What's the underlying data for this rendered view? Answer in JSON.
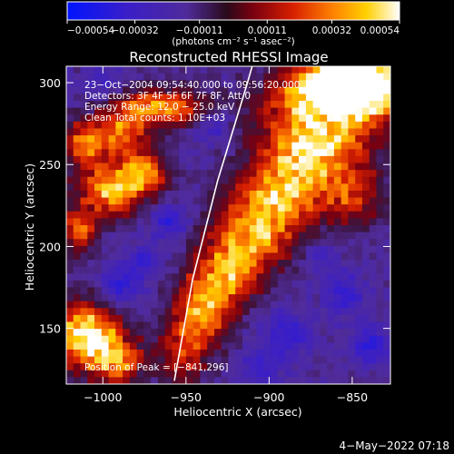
{
  "chart_data": {
    "type": "heatmap",
    "title": "Reconstructed RHESSI Image",
    "xlabel": "Heliocentric X (arcsec)",
    "ylabel": "Heliocentric Y (arcsec)",
    "xlim": [
      -1022,
      -827
    ],
    "ylim": [
      116,
      310
    ],
    "x_ticks": [
      -1000,
      -950,
      -900,
      -850
    ],
    "x_tick_labels": [
      "−1000",
      "−950",
      "−900",
      "−850"
    ],
    "y_ticks": [
      150,
      200,
      250,
      300
    ],
    "y_tick_labels": [
      "150",
      "200",
      "250",
      "300"
    ],
    "colorbar": {
      "min": -0.00054,
      "max": 0.00054,
      "ticks": [
        -0.00054,
        -0.00032,
        -0.00011,
        0.00011,
        0.00032,
        0.00054
      ],
      "tick_labels": [
        "−0.00054",
        "−0.00032",
        "−0.00011",
        "0.00011",
        "0.00032",
        "0.00054"
      ],
      "units": "(photons cm⁻² s⁻¹ asec⁻²)"
    },
    "annotations": [
      "23−Oct−2004 09:54:40.000 to 09:56:20.000",
      "Detectors: 3F 4F 5F 6F 7F 8F, Att 0",
      "Energy Range: 12.0 − 25.0 keV",
      "Clean     Total counts: 1.10E+03"
    ],
    "peak_label": "Position of Peak = [−841,296]",
    "peak_position": [
      -841,
      296
    ],
    "limb_arc": [
      [
        -957,
        118
      ],
      [
        -946,
        180
      ],
      [
        -931,
        240
      ],
      [
        -913,
        300
      ]
    ],
    "grid": false,
    "emission_blobs": [
      {
        "x": -860,
        "y": 290,
        "sx": 26,
        "sy": 14,
        "a": 1.35
      },
      {
        "x": -875,
        "y": 258,
        "sx": 22,
        "sy": 14,
        "a": 1.1
      },
      {
        "x": -893,
        "y": 230,
        "sx": 20,
        "sy": 12,
        "a": 1.0
      },
      {
        "x": -910,
        "y": 205,
        "sx": 18,
        "sy": 12,
        "a": 0.95
      },
      {
        "x": -925,
        "y": 182,
        "sx": 14,
        "sy": 12,
        "a": 0.85
      },
      {
        "x": -940,
        "y": 160,
        "sx": 12,
        "sy": 14,
        "a": 0.85
      },
      {
        "x": -952,
        "y": 135,
        "sx": 10,
        "sy": 14,
        "a": 0.6
      },
      {
        "x": -840,
        "y": 300,
        "sx": 12,
        "sy": 10,
        "a": 1.5
      },
      {
        "x": -848,
        "y": 230,
        "sx": 12,
        "sy": 12,
        "a": 0.55
      },
      {
        "x": -965,
        "y": 285,
        "sx": 20,
        "sy": 8,
        "a": 0.9
      },
      {
        "x": -990,
        "y": 268,
        "sx": 12,
        "sy": 9,
        "a": 0.8
      },
      {
        "x": -1012,
        "y": 262,
        "sx": 8,
        "sy": 10,
        "a": 0.75
      },
      {
        "x": -995,
        "y": 235,
        "sx": 13,
        "sy": 12,
        "a": 1.0
      },
      {
        "x": -975,
        "y": 245,
        "sx": 9,
        "sy": 9,
        "a": 0.85
      },
      {
        "x": -1015,
        "y": 210,
        "sx": 8,
        "sy": 10,
        "a": 0.7
      },
      {
        "x": -1010,
        "y": 145,
        "sx": 14,
        "sy": 14,
        "a": 1.3
      },
      {
        "x": -990,
        "y": 130,
        "sx": 10,
        "sy": 10,
        "a": 0.8
      },
      {
        "x": -870,
        "y": 300,
        "sx": 10,
        "sy": 7,
        "a": 0.8
      }
    ],
    "dark_spots": [
      {
        "x": -990,
        "y": 175,
        "s": 9,
        "a": 0.45
      },
      {
        "x": -960,
        "y": 215,
        "s": 8,
        "a": 0.4
      },
      {
        "x": -975,
        "y": 190,
        "s": 7,
        "a": 0.35
      },
      {
        "x": -890,
        "y": 145,
        "s": 10,
        "a": 0.4
      },
      {
        "x": -855,
        "y": 170,
        "s": 9,
        "a": 0.4
      },
      {
        "x": -840,
        "y": 140,
        "s": 8,
        "a": 0.45
      },
      {
        "x": -905,
        "y": 125,
        "s": 8,
        "a": 0.35
      },
      {
        "x": -1000,
        "y": 300,
        "s": 7,
        "a": 0.3
      },
      {
        "x": -935,
        "y": 275,
        "s": 8,
        "a": 0.35
      },
      {
        "x": -870,
        "y": 195,
        "s": 7,
        "a": 0.3
      }
    ]
  },
  "footer": {
    "date": "4−May−2022 07:18"
  },
  "colors": {
    "background": "#000000",
    "foreground": "#ffffff",
    "limb": "#ffffff"
  }
}
